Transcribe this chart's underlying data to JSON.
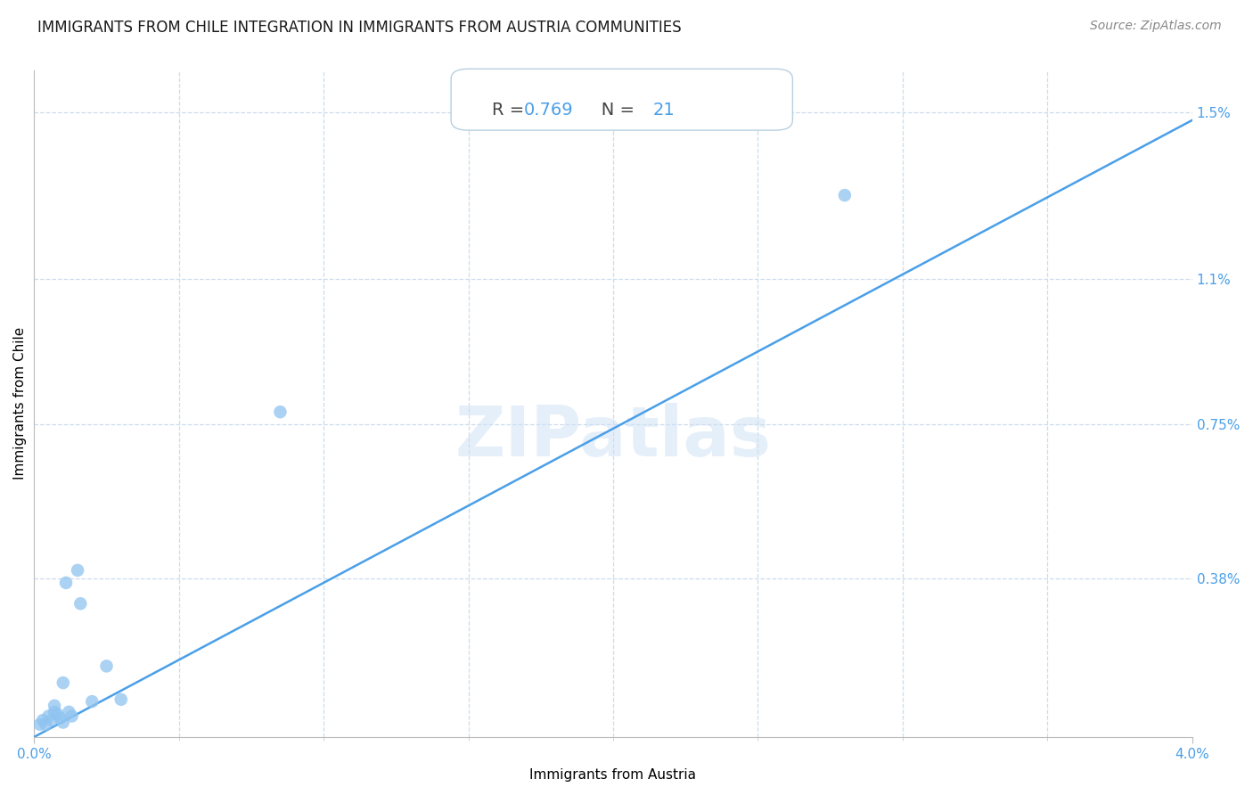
{
  "title": "IMMIGRANTS FROM CHILE INTEGRATION IN IMMIGRANTS FROM AUSTRIA COMMUNITIES",
  "source": "Source: ZipAtlas.com",
  "xlabel": "Immigrants from Austria",
  "ylabel": "Immigrants from Chile",
  "R": 0.769,
  "N": 21,
  "xlim": [
    0.0,
    0.04
  ],
  "ylim": [
    0.0,
    0.016
  ],
  "xtick_labels": [
    "0.0%",
    "4.0%"
  ],
  "ytick_labels": [
    "0.38%",
    "0.75%",
    "1.1%",
    "1.5%"
  ],
  "ytick_vals": [
    0.0038,
    0.0075,
    0.011,
    0.015
  ],
  "watermark": "ZIPatlas",
  "line_color": "#4a9fe8",
  "dot_color": "#90c4f0",
  "minor_xticks": [
    0.005,
    0.01,
    0.015,
    0.02,
    0.025,
    0.03,
    0.035
  ],
  "scatter_x": [
    0.0002,
    0.0003,
    0.0004,
    0.0005,
    0.0006,
    0.0007,
    0.0007,
    0.0008,
    0.0009,
    0.001,
    0.001,
    0.0011,
    0.0012,
    0.0013,
    0.0015,
    0.0016,
    0.002,
    0.0025,
    0.003,
    0.0085,
    0.028
  ],
  "scatter_y": [
    0.0003,
    0.0004,
    0.0003,
    0.0005,
    0.0004,
    0.0006,
    0.00075,
    0.00055,
    0.00045,
    0.00035,
    0.0013,
    0.0037,
    0.0006,
    0.0005,
    0.004,
    0.0032,
    0.00085,
    0.0017,
    0.0009,
    0.0078,
    0.013
  ],
  "line_x": [
    0.0,
    0.04
  ],
  "line_y": [
    0.0,
    0.0148
  ],
  "title_fontsize": 12,
  "axis_label_fontsize": 11,
  "tick_fontsize": 11,
  "source_fontsize": 10,
  "grid_color": "#ccdcec",
  "spine_color": "#bbbbbb",
  "tick_color": "#4a9fe8",
  "annotation_label_color": "#444444",
  "annotation_value_color": "#4a9fe8",
  "box_edge_color": "#b8cfe0"
}
